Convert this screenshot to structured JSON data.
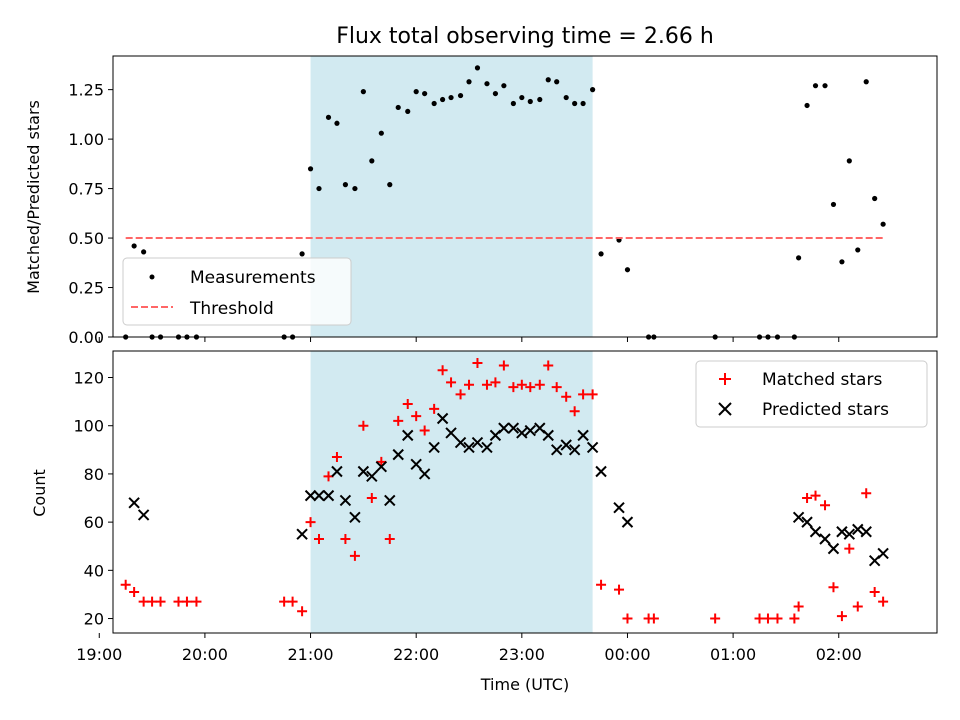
{
  "chart_data": [
    {
      "type": "scatter",
      "title": "Flux total observing time = 2.66 h",
      "xlabel": "",
      "ylabel": "Matched/Predicted stars",
      "xlim": [
        19.13,
        26.93
      ],
      "ylim": [
        0,
        1.42
      ],
      "y_ticks": [
        0.0,
        0.25,
        0.5,
        0.75,
        1.0,
        1.25
      ],
      "y_tick_labels": [
        "0.00",
        "0.25",
        "0.50",
        "0.75",
        "1.00",
        "1.25"
      ],
      "x_ticks": [
        19,
        20,
        21,
        22,
        23,
        24,
        25,
        26
      ],
      "shaded_interval": [
        21.0,
        23.67
      ],
      "shade_color": "#add8e6",
      "legend_location": "lower left",
      "series": [
        {
          "name": "Measurements",
          "marker": "dot",
          "color": "#000000",
          "points": [
            [
              19.25,
              0.0
            ],
            [
              19.33,
              0.46
            ],
            [
              19.42,
              0.43
            ],
            [
              19.5,
              0.0
            ],
            [
              19.58,
              0.0
            ],
            [
              19.75,
              0.0
            ],
            [
              19.83,
              0.0
            ],
            [
              19.92,
              0.0
            ],
            [
              20.75,
              0.0
            ],
            [
              20.83,
              0.0
            ],
            [
              20.92,
              0.42
            ],
            [
              21.0,
              0.85
            ],
            [
              21.08,
              0.75
            ],
            [
              21.17,
              1.11
            ],
            [
              21.25,
              1.08
            ],
            [
              21.33,
              0.77
            ],
            [
              21.42,
              0.75
            ],
            [
              21.5,
              1.24
            ],
            [
              21.58,
              0.89
            ],
            [
              21.67,
              1.03
            ],
            [
              21.75,
              0.77
            ],
            [
              21.83,
              1.16
            ],
            [
              21.92,
              1.14
            ],
            [
              22.0,
              1.24
            ],
            [
              22.08,
              1.23
            ],
            [
              22.17,
              1.18
            ],
            [
              22.25,
              1.2
            ],
            [
              22.33,
              1.21
            ],
            [
              22.42,
              1.22
            ],
            [
              22.5,
              1.29
            ],
            [
              22.58,
              1.36
            ],
            [
              22.67,
              1.28
            ],
            [
              22.75,
              1.23
            ],
            [
              22.83,
              1.27
            ],
            [
              22.92,
              1.18
            ],
            [
              23.0,
              1.21
            ],
            [
              23.08,
              1.19
            ],
            [
              23.17,
              1.2
            ],
            [
              23.25,
              1.3
            ],
            [
              23.33,
              1.29
            ],
            [
              23.42,
              1.21
            ],
            [
              23.5,
              1.18
            ],
            [
              23.58,
              1.18
            ],
            [
              23.67,
              1.25
            ],
            [
              23.75,
              0.42
            ],
            [
              23.92,
              0.49
            ],
            [
              24.0,
              0.34
            ],
            [
              24.2,
              0.0
            ],
            [
              24.25,
              0.0
            ],
            [
              24.83,
              0.0
            ],
            [
              25.25,
              0.0
            ],
            [
              25.33,
              0.0
            ],
            [
              25.42,
              0.0
            ],
            [
              25.58,
              0.0
            ],
            [
              25.62,
              0.4
            ],
            [
              25.7,
              1.17
            ],
            [
              25.78,
              1.27
            ],
            [
              25.87,
              1.27
            ],
            [
              25.95,
              0.67
            ],
            [
              26.03,
              0.38
            ],
            [
              26.1,
              0.89
            ],
            [
              26.18,
              0.44
            ],
            [
              26.26,
              1.29
            ],
            [
              26.34,
              0.7
            ],
            [
              26.42,
              0.57
            ]
          ]
        },
        {
          "name": "Threshold",
          "style": "dashed",
          "color": "#ff6666",
          "points": [
            [
              19.25,
              0.5
            ],
            [
              26.42,
              0.5
            ]
          ]
        }
      ]
    },
    {
      "type": "scatter",
      "title": "",
      "xlabel": "Time (UTC)",
      "ylabel": "Count",
      "xlim": [
        19.13,
        26.93
      ],
      "ylim": [
        14,
        131
      ],
      "y_ticks": [
        20,
        40,
        60,
        80,
        100,
        120
      ],
      "y_tick_labels": [
        "20",
        "40",
        "60",
        "80",
        "100",
        "120"
      ],
      "x_ticks": [
        19,
        20,
        21,
        22,
        23,
        24,
        25,
        26
      ],
      "x_tick_labels": [
        "19:00",
        "20:00",
        "21:00",
        "22:00",
        "23:00",
        "00:00",
        "01:00",
        "02:00"
      ],
      "shaded_interval": [
        21.0,
        23.67
      ],
      "shade_color": "#add8e6",
      "legend_location": "upper right",
      "series": [
        {
          "name": "Matched stars",
          "marker": "plus",
          "color": "#ff0000",
          "points": [
            [
              19.25,
              34
            ],
            [
              19.33,
              31
            ],
            [
              19.42,
              27
            ],
            [
              19.5,
              27
            ],
            [
              19.58,
              27
            ],
            [
              19.75,
              27
            ],
            [
              19.83,
              27
            ],
            [
              19.92,
              27
            ],
            [
              20.75,
              27
            ],
            [
              20.83,
              27
            ],
            [
              20.92,
              23
            ],
            [
              21.0,
              60
            ],
            [
              21.08,
              53
            ],
            [
              21.17,
              79
            ],
            [
              21.25,
              87
            ],
            [
              21.33,
              53
            ],
            [
              21.42,
              46
            ],
            [
              21.5,
              100
            ],
            [
              21.58,
              70
            ],
            [
              21.67,
              85
            ],
            [
              21.75,
              53
            ],
            [
              21.83,
              102
            ],
            [
              21.92,
              109
            ],
            [
              22.0,
              104
            ],
            [
              22.08,
              98
            ],
            [
              22.17,
              107
            ],
            [
              22.25,
              123
            ],
            [
              22.33,
              118
            ],
            [
              22.42,
              113
            ],
            [
              22.5,
              117
            ],
            [
              22.58,
              126
            ],
            [
              22.67,
              117
            ],
            [
              22.75,
              118
            ],
            [
              22.83,
              125
            ],
            [
              22.92,
              116
            ],
            [
              23.0,
              117
            ],
            [
              23.08,
              116
            ],
            [
              23.17,
              117
            ],
            [
              23.25,
              125
            ],
            [
              23.33,
              116
            ],
            [
              23.42,
              112
            ],
            [
              23.5,
              106
            ],
            [
              23.58,
              113
            ],
            [
              23.67,
              113
            ],
            [
              23.75,
              34
            ],
            [
              23.92,
              32
            ],
            [
              24.0,
              20
            ],
            [
              24.2,
              20
            ],
            [
              24.25,
              20
            ],
            [
              24.83,
              20
            ],
            [
              25.25,
              20
            ],
            [
              25.33,
              20
            ],
            [
              25.42,
              20
            ],
            [
              25.58,
              20
            ],
            [
              25.62,
              25
            ],
            [
              25.7,
              70
            ],
            [
              25.78,
              71
            ],
            [
              25.87,
              67
            ],
            [
              25.95,
              33
            ],
            [
              26.03,
              21
            ],
            [
              26.1,
              49
            ],
            [
              26.18,
              25
            ],
            [
              26.26,
              72
            ],
            [
              26.34,
              31
            ],
            [
              26.42,
              27
            ]
          ]
        },
        {
          "name": "Predicted stars",
          "marker": "x",
          "color": "#000000",
          "points": [
            [
              19.33,
              68
            ],
            [
              19.42,
              63
            ],
            [
              20.92,
              55
            ],
            [
              21.0,
              71
            ],
            [
              21.08,
              71
            ],
            [
              21.17,
              71
            ],
            [
              21.25,
              81
            ],
            [
              21.33,
              69
            ],
            [
              21.42,
              62
            ],
            [
              21.5,
              81
            ],
            [
              21.58,
              79
            ],
            [
              21.67,
              83
            ],
            [
              21.75,
              69
            ],
            [
              21.83,
              88
            ],
            [
              21.92,
              96
            ],
            [
              22.0,
              84
            ],
            [
              22.08,
              80
            ],
            [
              22.17,
              91
            ],
            [
              22.25,
              103
            ],
            [
              22.33,
              97
            ],
            [
              22.42,
              93
            ],
            [
              22.5,
              91
            ],
            [
              22.58,
              93
            ],
            [
              22.67,
              91
            ],
            [
              22.75,
              96
            ],
            [
              22.83,
              99
            ],
            [
              22.92,
              99
            ],
            [
              23.0,
              97
            ],
            [
              23.08,
              98
            ],
            [
              23.17,
              99
            ],
            [
              23.25,
              96
            ],
            [
              23.33,
              90
            ],
            [
              23.42,
              92
            ],
            [
              23.5,
              90
            ],
            [
              23.58,
              96
            ],
            [
              23.67,
              91
            ],
            [
              23.75,
              81
            ],
            [
              23.92,
              66
            ],
            [
              24.0,
              60
            ],
            [
              25.62,
              62
            ],
            [
              25.7,
              60
            ],
            [
              25.78,
              56
            ],
            [
              25.87,
              53
            ],
            [
              25.95,
              49
            ],
            [
              26.03,
              56
            ],
            [
              26.1,
              55
            ],
            [
              26.18,
              57
            ],
            [
              26.26,
              56
            ],
            [
              26.34,
              44
            ],
            [
              26.42,
              47
            ]
          ]
        }
      ]
    }
  ]
}
